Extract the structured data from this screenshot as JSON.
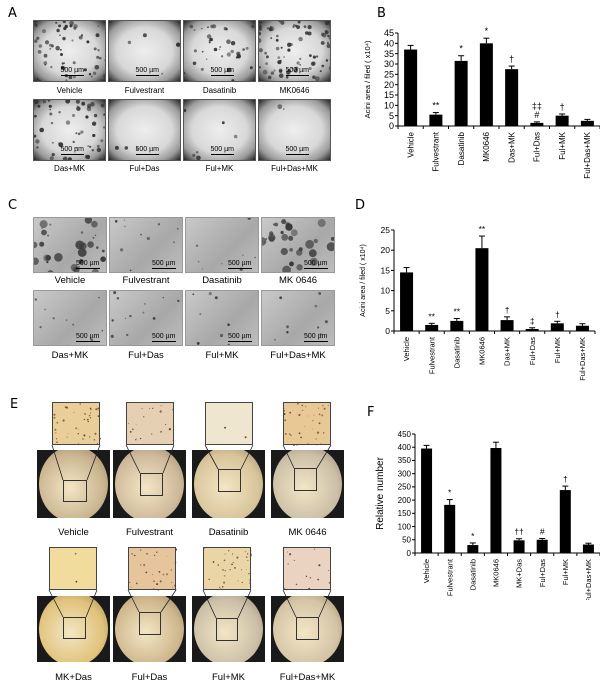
{
  "panels": {
    "A": {
      "label": "A",
      "scale_text": "500 µm",
      "row1": [
        "Vehicle",
        "Fulvestrant",
        "Dasatinib",
        "MK0646"
      ],
      "row2": [
        "Das+MK",
        "Ful+Das",
        "Ful+MK",
        "Ful+Das+MK"
      ]
    },
    "B": {
      "label": "B"
    },
    "C": {
      "label": "C",
      "scale_text": "500 µm",
      "row1": [
        "Vehicle",
        "Fulvestrant",
        "Dasatinib",
        "MK 0646"
      ],
      "row2": [
        "Das+MK",
        "Ful+Das",
        "Ful+MK",
        "Ful+Das+MK"
      ]
    },
    "D": {
      "label": "D"
    },
    "E": {
      "label": "E",
      "row1": [
        "Vehicle",
        "Fulvestrant",
        "Dasatinib",
        "MK 0646"
      ],
      "row2": [
        "MK+Das",
        "Ful+Das",
        "Ful+MK",
        "Ful+Das+MK"
      ]
    },
    "F": {
      "label": "F"
    }
  },
  "chart_data": [
    {
      "id": "B",
      "type": "bar",
      "title": "",
      "xlabel": "",
      "ylabel": "Acini area / filed ( x10⁴)",
      "ylim": [
        0,
        45
      ],
      "yticks": [
        0,
        5,
        10,
        15,
        20,
        25,
        30,
        35,
        40,
        45
      ],
      "categories": [
        "Vehicle",
        "Fulvestrant",
        "Dasatinib",
        "MK0646",
        "Das+MK",
        "Ful+Das",
        "Ful+MK",
        "Ful+Das+MK"
      ],
      "values": [
        37,
        5.5,
        31.5,
        40,
        27.5,
        1.5,
        5,
        2.5
      ],
      "errors": [
        2,
        1,
        2.5,
        2.5,
        1.5,
        0.5,
        0.8,
        0.7
      ],
      "annotations": [
        "",
        "**",
        "*",
        "*",
        "†",
        "‡‡\n#",
        "†",
        ""
      ],
      "grid": false,
      "legend": null
    },
    {
      "id": "D",
      "type": "bar",
      "title": "",
      "xlabel": "",
      "ylabel": "Acini area / filed ( x10⁴)",
      "ylim": [
        0,
        25
      ],
      "yticks": [
        0,
        5,
        10,
        15,
        20,
        25
      ],
      "categories": [
        "Vehicle",
        "Fulvestrant",
        "Dasatinib",
        "MK0646",
        "Das+MK",
        "Ful+Das",
        "Ful+MK",
        "Ful+Das+MK"
      ],
      "values": [
        14.5,
        1.5,
        2.5,
        20.5,
        2.7,
        0.5,
        1.9,
        1.3
      ],
      "errors": [
        1.2,
        0.4,
        0.6,
        3,
        0.8,
        0.3,
        0.5,
        0.5
      ],
      "annotations": [
        "",
        "**",
        "**",
        "**",
        "†",
        "‡",
        "†",
        ""
      ],
      "grid": false,
      "legend": null
    },
    {
      "id": "F",
      "type": "bar",
      "title": "",
      "xlabel": "",
      "ylabel": "Relative number",
      "ylim": [
        0,
        450
      ],
      "yticks": [
        0,
        50,
        100,
        150,
        200,
        250,
        300,
        350,
        400,
        450
      ],
      "categories": [
        "Vehicle",
        "Fulvestrant",
        "Dasatinib",
        "MK0646",
        "MK+Das",
        "Ful+Das",
        "Ful+MK",
        "Ful+Das+MK"
      ],
      "values": [
        395,
        182,
        30,
        397,
        48,
        50,
        238,
        32
      ],
      "errors": [
        12,
        20,
        8,
        22,
        6,
        5,
        15,
        5
      ],
      "annotations": [
        "",
        "*",
        "*",
        "",
        "††",
        "#",
        "†",
        ""
      ],
      "grid": false,
      "legend": null
    }
  ]
}
